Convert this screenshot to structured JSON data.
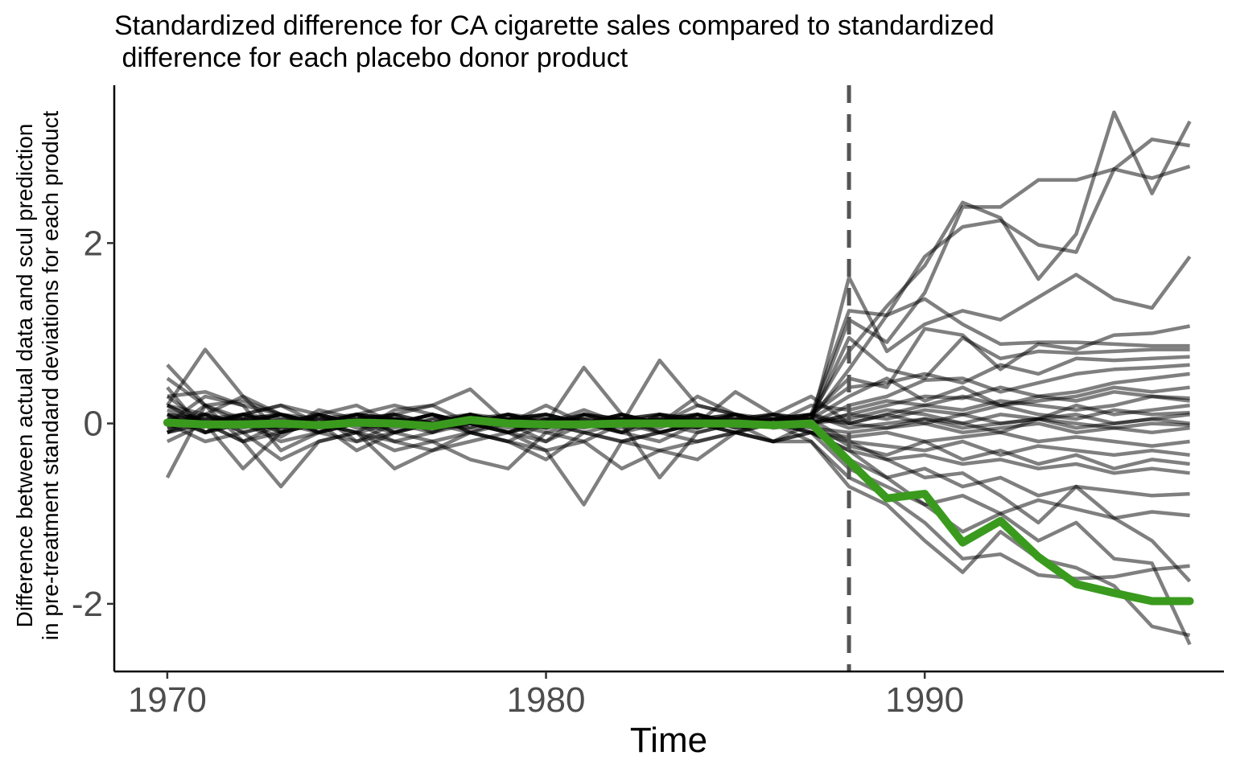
{
  "chart_data": {
    "type": "line",
    "title_lines": [
      "Standardized difference for CA cigarette sales compared to standardized",
      " difference for each placebo donor product"
    ],
    "xlabel": "Time",
    "ylabel_lines": [
      "Difference between actual data and scul prediction",
      "in pre-treatment standard deviations for each product"
    ],
    "xlim": [
      1968.6,
      1997.9
    ],
    "ylim": [
      -2.75,
      3.75
    ],
    "x_ticks": [
      1970,
      1980,
      1990
    ],
    "x_tick_labels": [
      "1970",
      "1980",
      "1990"
    ],
    "y_ticks": [
      -2,
      0,
      2
    ],
    "y_tick_labels": [
      "-2",
      "0",
      "2"
    ],
    "treatment_year": 1988,
    "grid": false,
    "placebo_color": "#000000",
    "placebo_opacity": 0.5,
    "target_color": "#3a9a1e",
    "reference_line_color": "#555555",
    "x": [
      1970,
      1971,
      1972,
      1973,
      1974,
      1975,
      1976,
      1977,
      1978,
      1979,
      1980,
      1981,
      1982,
      1983,
      1984,
      1985,
      1986,
      1987,
      1988,
      1989,
      1990,
      1991,
      1992,
      1993,
      1994,
      1995,
      1996,
      1997
    ],
    "target_series": {
      "values": [
        0.01,
        -0.01,
        -0.01,
        0.0,
        -0.02,
        0.01,
        0.0,
        -0.03,
        0.04,
        0.0,
        -0.01,
        -0.01,
        0.0,
        0.0,
        0.0,
        0.0,
        -0.02,
        0.0,
        -0.42,
        -0.83,
        -0.78,
        -1.32,
        -1.08,
        -1.48,
        -1.78,
        -1.88,
        -1.97,
        -1.97
      ]
    },
    "series": [
      {
        "values": [
          0.05,
          0.1,
          0.0,
          0.1,
          0.0,
          0.05,
          0.0,
          0.1,
          0.0,
          0.05,
          0.0,
          0.1,
          0.0,
          0.05,
          0.1,
          0.0,
          0.05,
          0.1,
          0.8,
          1.3,
          1.75,
          2.45,
          2.28,
          1.6,
          2.1,
          3.45,
          2.55,
          3.35
        ]
      },
      {
        "values": [
          0.0,
          0.05,
          0.1,
          0.0,
          0.05,
          0.0,
          0.1,
          0.0,
          0.05,
          0.1,
          0.0,
          0.05,
          0.0,
          0.1,
          0.05,
          0.0,
          0.1,
          0.05,
          0.6,
          1.2,
          1.85,
          2.18,
          2.25,
          1.98,
          1.9,
          2.82,
          3.15,
          3.08
        ]
      },
      {
        "values": [
          0.1,
          0.0,
          0.05,
          0.1,
          0.0,
          0.1,
          0.05,
          0.0,
          0.1,
          0.0,
          0.05,
          0.0,
          0.1,
          0.0,
          0.05,
          0.1,
          0.0,
          0.05,
          1.15,
          0.9,
          1.45,
          2.4,
          2.4,
          2.7,
          2.7,
          2.82,
          2.72,
          2.85
        ]
      },
      {
        "values": [
          0.65,
          0.2,
          0.25,
          0.1,
          0.05,
          0.1,
          0.05,
          0.0,
          0.1,
          0.05,
          0.1,
          0.0,
          0.05,
          0.1,
          0.0,
          0.05,
          0.1,
          0.0,
          1.62,
          0.8,
          1.1,
          1.25,
          1.15,
          1.4,
          1.65,
          1.38,
          1.28,
          1.85
        ]
      },
      {
        "values": [
          -0.6,
          0.2,
          0.05,
          -0.1,
          0.1,
          0.0,
          0.05,
          -0.05,
          0.0,
          0.1,
          0.0,
          0.05,
          0.0,
          0.05,
          0.1,
          0.0,
          0.05,
          0.1,
          1.25,
          1.2,
          1.38,
          1.1,
          0.88,
          0.9,
          0.9,
          0.88,
          0.86,
          0.86
        ]
      },
      {
        "values": [
          0.4,
          -0.1,
          0.1,
          0.2,
          0.0,
          0.1,
          -0.1,
          0.05,
          0.1,
          0.0,
          -0.05,
          0.1,
          0.0,
          0.05,
          -0.05,
          0.1,
          0.0,
          0.05,
          0.95,
          0.6,
          0.5,
          0.95,
          0.72,
          0.8,
          0.78,
          0.8,
          0.82,
          0.82
        ]
      },
      {
        "values": [
          0.2,
          0.82,
          0.3,
          0.1,
          -0.1,
          0.05,
          0.1,
          0.0,
          -0.05,
          0.1,
          0.0,
          0.15,
          0.0,
          -0.05,
          0.1,
          0.0,
          0.05,
          0.1,
          0.5,
          0.4,
          1.05,
          0.98,
          0.6,
          0.88,
          0.82,
          0.98,
          1.0,
          1.08
        ]
      },
      {
        "values": [
          0.5,
          0.2,
          0.0,
          -0.15,
          0.1,
          0.2,
          0.0,
          -0.1,
          0.1,
          0.0,
          -0.05,
          0.1,
          0.05,
          0.0,
          0.1,
          -0.05,
          0.0,
          0.1,
          0.4,
          0.45,
          0.55,
          0.45,
          0.65,
          0.55,
          0.72,
          0.7,
          0.72,
          0.74
        ]
      },
      {
        "values": [
          0.3,
          0.35,
          0.2,
          -0.3,
          -0.1,
          0.1,
          0.0,
          0.1,
          -0.1,
          0.05,
          0.1,
          0.0,
          -0.1,
          0.1,
          0.05,
          0.1,
          -0.05,
          0.0,
          0.2,
          0.3,
          0.48,
          0.5,
          0.35,
          0.45,
          0.55,
          0.6,
          0.62,
          0.65
        ]
      },
      {
        "values": [
          0.1,
          -0.1,
          0.05,
          0.1,
          0.0,
          -0.1,
          0.15,
          0.2,
          0.38,
          0.0,
          -0.2,
          0.1,
          0.05,
          0.0,
          -0.1,
          0.0,
          0.1,
          0.0,
          0.1,
          0.2,
          0.3,
          0.28,
          0.4,
          0.3,
          0.35,
          0.45,
          0.5,
          0.55
        ]
      },
      {
        "values": [
          -0.2,
          0.0,
          0.1,
          0.2,
          0.1,
          0.0,
          -0.1,
          0.0,
          0.1,
          -0.05,
          0.0,
          0.62,
          0.1,
          0.0,
          0.2,
          0.1,
          0.0,
          0.2,
          0.15,
          0.25,
          0.2,
          0.3,
          0.2,
          0.25,
          0.3,
          0.4,
          0.35,
          0.4
        ]
      },
      {
        "values": [
          0.0,
          0.3,
          0.2,
          0.1,
          0.0,
          0.1,
          0.2,
          0.1,
          0.0,
          0.1,
          0.0,
          -0.1,
          0.0,
          0.7,
          0.2,
          0.1,
          0.0,
          0.1,
          0.0,
          0.1,
          0.2,
          0.15,
          0.25,
          0.2,
          0.15,
          0.2,
          0.3,
          0.25
        ]
      },
      {
        "values": [
          0.2,
          0.1,
          0.3,
          -0.1,
          0.15,
          0.05,
          0.1,
          0.2,
          0.0,
          0.1,
          0.05,
          0.0,
          0.1,
          0.0,
          0.3,
          0.1,
          0.05,
          0.0,
          0.05,
          0.15,
          0.1,
          0.0,
          0.1,
          0.05,
          0.2,
          0.1,
          0.15,
          0.2
        ]
      },
      {
        "values": [
          -0.1,
          0.2,
          -0.2,
          0.0,
          0.1,
          -0.2,
          0.0,
          0.1,
          -0.1,
          0.0,
          0.2,
          0.0,
          -0.1,
          0.1,
          0.0,
          0.35,
          0.1,
          0.3,
          0.0,
          0.1,
          0.0,
          0.1,
          0.0,
          0.05,
          0.1,
          0.0,
          0.05,
          0.1
        ]
      },
      {
        "values": [
          0.15,
          0.0,
          0.1,
          0.05,
          -0.1,
          0.0,
          0.1,
          -0.1,
          0.05,
          0.0,
          0.1,
          0.0,
          0.05,
          -0.1,
          0.0,
          0.05,
          0.0,
          0.1,
          -0.05,
          0.0,
          0.05,
          -0.05,
          0.0,
          0.05,
          -0.05,
          0.0,
          0.05,
          0.0
        ]
      },
      {
        "values": [
          -0.05,
          0.1,
          -0.1,
          0.0,
          0.1,
          -0.05,
          0.0,
          0.1,
          0.0,
          -0.1,
          0.05,
          0.0,
          0.1,
          0.0,
          -0.05,
          0.1,
          0.0,
          -0.05,
          -0.1,
          -0.05,
          0.0,
          -0.1,
          -0.05,
          0.0,
          -0.1,
          -0.05,
          -0.1,
          -0.05
        ]
      },
      {
        "values": [
          0.05,
          -0.1,
          0.0,
          0.1,
          -0.1,
          0.0,
          0.05,
          -0.05,
          0.1,
          -0.1,
          0.0,
          0.05,
          -0.1,
          0.0,
          0.05,
          -0.05,
          0.0,
          -0.1,
          -0.15,
          -0.1,
          -0.2,
          -0.15,
          -0.1,
          -0.2,
          -0.15,
          -0.2,
          -0.25,
          -0.2
        ]
      },
      {
        "values": [
          -0.1,
          0.0,
          -0.2,
          -0.1,
          0.0,
          -0.1,
          -0.2,
          -0.1,
          0.0,
          -0.1,
          -0.2,
          0.0,
          -0.1,
          -0.2,
          0.0,
          -0.1,
          0.0,
          -0.1,
          -0.2,
          -0.25,
          -0.3,
          -0.2,
          -0.35,
          -0.25,
          -0.3,
          -0.35,
          -0.3,
          -0.35
        ]
      },
      {
        "values": [
          0.0,
          -0.2,
          -0.1,
          -0.4,
          -0.2,
          -0.1,
          -0.3,
          -0.2,
          -0.1,
          -0.2,
          -0.4,
          -0.1,
          -0.2,
          -0.1,
          -0.2,
          -0.1,
          -0.2,
          -0.1,
          -0.3,
          -0.4,
          -0.35,
          -0.45,
          -0.4,
          -0.5,
          -0.45,
          -0.55,
          -0.5,
          -0.55
        ]
      },
      {
        "values": [
          0.2,
          0.0,
          -0.5,
          -0.1,
          0.0,
          -0.3,
          -0.1,
          -0.2,
          -0.4,
          -0.5,
          -0.1,
          -0.2,
          0.0,
          -0.6,
          -0.1,
          0.0,
          -0.2,
          0.0,
          -0.4,
          -0.6,
          -0.5,
          -0.7,
          -0.6,
          -0.8,
          -0.7,
          -0.75,
          -0.8,
          -0.78
        ]
      },
      {
        "values": [
          0.3,
          0.0,
          -0.2,
          -0.7,
          -0.2,
          -0.1,
          -0.5,
          -0.3,
          -0.2,
          -0.1,
          -0.3,
          -0.9,
          -0.2,
          -0.3,
          -0.4,
          -0.1,
          -0.2,
          -0.1,
          -0.5,
          -0.7,
          -0.9,
          -0.8,
          -1.0,
          -0.85,
          -0.95,
          -1.05,
          -0.98,
          -1.02
        ]
      },
      {
        "values": [
          0.1,
          -0.1,
          0.0,
          -0.2,
          -0.1,
          0.0,
          -0.2,
          -0.3,
          -0.1,
          -0.2,
          -0.3,
          -0.2,
          -0.5,
          -0.3,
          -0.2,
          -0.1,
          -0.2,
          -0.2,
          -0.6,
          -0.8,
          -1.1,
          -1.5,
          -1.45,
          -1.68,
          -1.72,
          -1.7,
          -1.62,
          -1.58
        ]
      },
      {
        "values": [
          0.0,
          0.1,
          -0.1,
          0.0,
          -0.1,
          -0.2,
          -0.1,
          0.0,
          -0.1,
          -0.2,
          0.0,
          -0.1,
          -0.2,
          -0.1,
          0.0,
          -0.1,
          0.0,
          -0.2,
          -0.7,
          -0.9,
          -1.3,
          -1.65,
          -1.2,
          -1.5,
          -1.6,
          -1.8,
          -2.25,
          -2.35
        ]
      },
      {
        "values": [
          0.2,
          0.0,
          0.1,
          -0.1,
          0.0,
          0.1,
          -0.1,
          0.0,
          0.1,
          0.0,
          -0.1,
          0.0,
          0.1,
          -0.1,
          0.0,
          0.1,
          0.0,
          -0.1,
          -0.3,
          -0.6,
          -0.9,
          -1.2,
          -1.0,
          -1.3,
          -1.1,
          -1.5,
          -1.55,
          -2.45
        ]
      },
      {
        "values": [
          -0.1,
          0.1,
          0.0,
          0.1,
          0.0,
          -0.1,
          0.0,
          0.1,
          0.0,
          -0.1,
          0.0,
          0.1,
          0.0,
          -0.1,
          0.0,
          0.1,
          0.0,
          0.05,
          -0.2,
          -0.4,
          -0.6,
          -0.55,
          -0.8,
          -1.1,
          -0.7,
          -1.05,
          -1.3,
          -1.75
        ]
      },
      {
        "values": [
          0.05,
          0.0,
          0.1,
          0.0,
          -0.05,
          0.05,
          0.0,
          0.1,
          0.0,
          0.05,
          0.0,
          -0.05,
          0.05,
          0.0,
          0.1,
          0.0,
          0.05,
          0.0,
          0.1,
          0.05,
          0.15,
          0.1,
          0.2,
          0.1,
          0.05,
          0.15,
          0.1,
          0.12
        ]
      },
      {
        "values": [
          -0.05,
          0.05,
          0.0,
          -0.05,
          0.05,
          0.0,
          0.05,
          -0.05,
          0.0,
          0.05,
          -0.05,
          0.0,
          0.05,
          0.0,
          -0.05,
          0.05,
          0.0,
          0.05,
          0.0,
          -0.05,
          0.05,
          0.0,
          -0.1,
          0.05,
          0.0,
          -0.05,
          0.0,
          -0.02
        ]
      },
      {
        "values": [
          0.1,
          0.05,
          -0.05,
          0.05,
          0.0,
          0.1,
          0.05,
          0.0,
          -0.05,
          0.05,
          0.1,
          0.0,
          0.05,
          0.1,
          0.0,
          0.05,
          0.1,
          0.05,
          0.3,
          0.5,
          0.25,
          0.4,
          0.2,
          0.3,
          0.25,
          0.35,
          0.3,
          0.28
        ]
      },
      {
        "values": [
          -0.1,
          0.0,
          0.05,
          -0.05,
          0.1,
          0.0,
          -0.05,
          0.05,
          0.0,
          -0.1,
          0.05,
          0.0,
          -0.05,
          0.05,
          0.0,
          -0.1,
          0.05,
          0.0,
          -0.25,
          -0.35,
          -0.2,
          -0.4,
          -0.3,
          -0.45,
          -0.35,
          -0.5,
          -0.4,
          -0.45
        ]
      }
    ]
  }
}
